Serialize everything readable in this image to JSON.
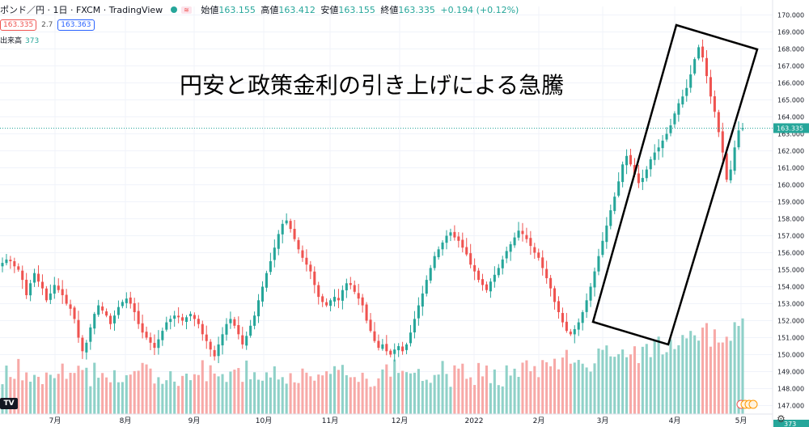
{
  "legend": {
    "symbol": "ポンド／円 · 1日 · FXCM · TradingView",
    "open_label": "始値",
    "open": "163.155",
    "high_label": "高値",
    "high": "163.412",
    "low_label": "安値",
    "low": "163.155",
    "close_label": "終値",
    "close": "163.335",
    "change": "+0.194 (+0.12%)",
    "sell": "163.335",
    "spread": "2.7",
    "buy": "163.363",
    "volume_label": "出来高",
    "volume": "373"
  },
  "annotation": "円安と政策金利の引き上げによる急騰",
  "colors": {
    "up": "#26a69a",
    "down": "#ef5350",
    "vol_up": "#8fd1c8",
    "vol_down": "#f7a9a7",
    "grid": "#f0f3fa"
  },
  "chart_data": {
    "type": "candlestick",
    "title": "ポンド／円 1日 FXCM",
    "ylim": [
      146.5,
      170.5
    ],
    "y_ticks": [
      "147.000",
      "148.000",
      "149.000",
      "150.000",
      "151.000",
      "152.000",
      "153.000",
      "154.000",
      "155.000",
      "156.000",
      "157.000",
      "158.000",
      "159.000",
      "160.000",
      "161.000",
      "162.000",
      "163.000",
      "164.000",
      "165.000",
      "166.000",
      "167.000",
      "168.000",
      "169.000",
      "170.000"
    ],
    "x_ticks": [
      "7月",
      "8月",
      "9月",
      "10月",
      "11月",
      "12月",
      "2022",
      "2月",
      "3月",
      "4月",
      "5月"
    ],
    "last_price": "163.335",
    "volume_last": "373",
    "series": [
      {
        "name": "close",
        "values": [
          155.4,
          155.6,
          155.5,
          155.2,
          155.0,
          154.4,
          153.5,
          154.2,
          154.8,
          154.3,
          153.9,
          153.2,
          153.6,
          154.1,
          153.8,
          153.5,
          153.0,
          152.7,
          152.1,
          151.0,
          150.2,
          150.7,
          151.6,
          152.4,
          152.9,
          152.6,
          152.3,
          151.8,
          152.3,
          152.8,
          153.1,
          153.3,
          153.0,
          152.5,
          151.8,
          151.3,
          151.0,
          150.7,
          150.4,
          150.9,
          151.4,
          151.9,
          152.1,
          152.3,
          152.2,
          152.0,
          152.2,
          152.4,
          152.1,
          151.8,
          151.2,
          150.8,
          150.3,
          149.9,
          150.6,
          151.2,
          151.8,
          152.1,
          151.7,
          151.2,
          150.6,
          151.1,
          151.7,
          152.3,
          153.2,
          154.0,
          154.8,
          155.5,
          156.3,
          157.1,
          157.7,
          157.9,
          157.4,
          156.8,
          156.2,
          155.7,
          155.3,
          154.9,
          154.1,
          153.4,
          153.1,
          152.9,
          153.2,
          153.4,
          153.2,
          153.8,
          154.2,
          154.1,
          153.7,
          153.3,
          152.9,
          152.0,
          151.4,
          150.8,
          150.4,
          150.6,
          150.2,
          150.0,
          150.3,
          150.5,
          150.2,
          150.6,
          151.3,
          152.1,
          152.9,
          153.6,
          154.4,
          155.1,
          155.8,
          156.2,
          156.6,
          157.0,
          157.2,
          156.9,
          156.7,
          156.3,
          155.9,
          155.3,
          154.9,
          154.4,
          154.1,
          153.8,
          154.3,
          154.7,
          155.1,
          155.6,
          156.1,
          156.5,
          156.9,
          157.3,
          157.1,
          156.8,
          156.4,
          156.0,
          155.7,
          155.1,
          154.5,
          153.9,
          153.1,
          152.5,
          151.9,
          151.4,
          151.2,
          151.5,
          151.9,
          152.5,
          153.2,
          154.0,
          154.9,
          155.8,
          156.7,
          157.6,
          158.5,
          159.3,
          160.2,
          161.2,
          161.7,
          161.2,
          160.6,
          160.1,
          160.4,
          160.9,
          161.5,
          161.9,
          162.2,
          162.6,
          163.0,
          163.5,
          164.2,
          164.8,
          165.2,
          165.7,
          166.5,
          167.4,
          168.1,
          167.5,
          166.4,
          165.2,
          164.3,
          163.1,
          161.9,
          160.3,
          160.9,
          162.2,
          163.2,
          163.335
        ]
      }
    ]
  }
}
